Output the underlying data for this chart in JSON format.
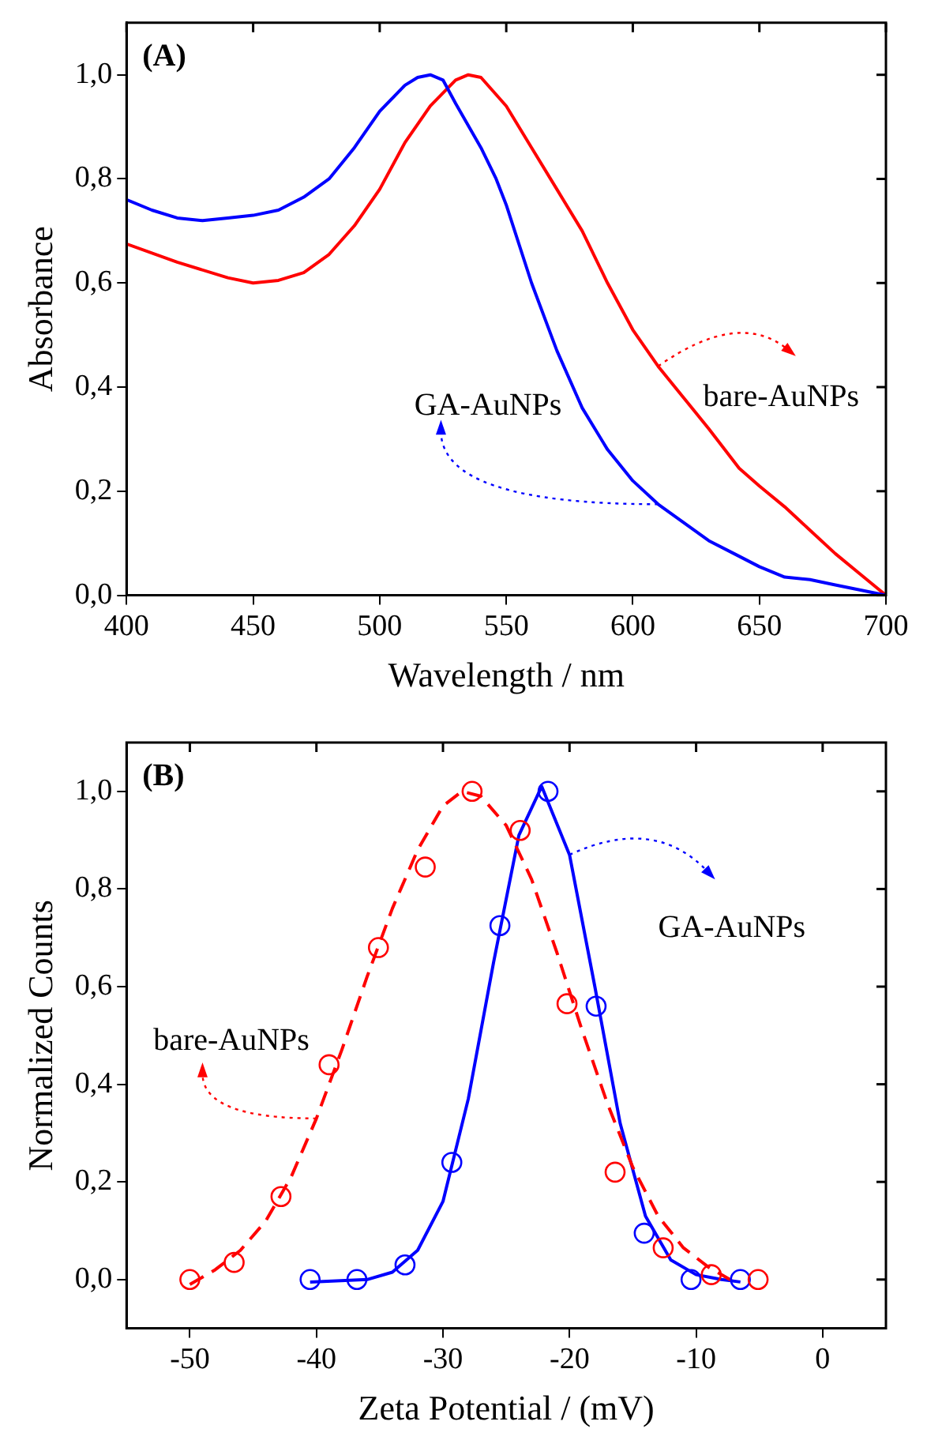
{
  "chart_data": [
    {
      "type": "line",
      "title": "(A)",
      "xlabel": "Wavelength / nm",
      "ylabel": "Absorbance",
      "xlim": [
        400,
        700
      ],
      "xticks": [
        400,
        450,
        500,
        550,
        600,
        650,
        700
      ],
      "ylim": [
        0,
        1.1
      ],
      "yticks": [
        {
          "value": 0,
          "label": "0,0"
        },
        {
          "value": 0.2,
          "label": "0,2"
        },
        {
          "value": 0.4,
          "label": "0,4"
        },
        {
          "value": 0.6,
          "label": "0,6"
        },
        {
          "value": 0.8,
          "label": "0,8"
        },
        {
          "value": 1,
          "label": "1,0"
        }
      ],
      "grid": false,
      "marker": "none",
      "line_style": "solid",
      "series": [
        {
          "name": "GA-AuNPs",
          "color": "#0000ff",
          "x": [
            400,
            410,
            420,
            430,
            440,
            450,
            460,
            470,
            480,
            490,
            500,
            510,
            515,
            520,
            525,
            530,
            540,
            546,
            550,
            560,
            570,
            580,
            590,
            600,
            610,
            620,
            630,
            640,
            650,
            660,
            670,
            680,
            690,
            700
          ],
          "values": [
            0.76,
            0.74,
            0.725,
            0.72,
            0.725,
            0.73,
            0.74,
            0.765,
            0.8,
            0.86,
            0.93,
            0.98,
            0.995,
            1.0,
            0.99,
            0.945,
            0.86,
            0.8,
            0.75,
            0.6,
            0.47,
            0.36,
            0.28,
            0.22,
            0.175,
            0.14,
            0.105,
            0.08,
            0.055,
            0.035,
            0.03,
            0.02,
            0.01,
            0.0
          ]
        },
        {
          "name": "bare-AuNPs",
          "color": "#ff0000",
          "x": [
            400,
            420,
            440,
            450,
            460,
            470,
            480,
            490,
            500,
            510,
            520,
            530,
            535,
            540,
            550,
            560,
            570,
            580,
            590,
            600,
            610,
            620,
            630,
            642,
            650,
            660,
            670,
            680,
            690,
            700
          ],
          "values": [
            0.675,
            0.64,
            0.61,
            0.6,
            0.605,
            0.62,
            0.655,
            0.71,
            0.78,
            0.87,
            0.94,
            0.99,
            1.0,
            0.995,
            0.94,
            0.86,
            0.78,
            0.7,
            0.6,
            0.51,
            0.44,
            0.38,
            0.32,
            0.244,
            0.21,
            0.17,
            0.125,
            0.08,
            0.04,
            0.0
          ]
        }
      ]
    },
    {
      "type": "line",
      "title": "(B)",
      "xlabel": "Zeta Potential / (mV)",
      "ylabel": "Normalized Counts",
      "xlim": [
        -55,
        5
      ],
      "xticks": [
        -50,
        -40,
        -30,
        -20,
        -10,
        0
      ],
      "ylim": [
        -0.1,
        1.1
      ],
      "yticks": [
        {
          "value": 0,
          "label": "0,0"
        },
        {
          "value": 0.2,
          "label": "0,2"
        },
        {
          "value": 0.4,
          "label": "0,4"
        },
        {
          "value": 0.6,
          "label": "0,6"
        },
        {
          "value": 0.8,
          "label": "0,8"
        },
        {
          "value": 1,
          "label": "1,0"
        }
      ],
      "grid": false,
      "series": [
        {
          "type": "scatter",
          "marker": "circle",
          "color": "#ff0000",
          "x": [
            -50,
            -46.5,
            -42.8,
            -39,
            -35.1,
            -31.4,
            -27.7,
            -23.9,
            -20.2,
            -16.4,
            -12.6,
            -8.8,
            -5.1
          ],
          "values": [
            0,
            0.035,
            0.17,
            0.44,
            0.68,
            0.845,
            1.0,
            0.92,
            0.565,
            0.22,
            0.065,
            0.01,
            0
          ]
        },
        {
          "type": "line",
          "name": "bare-AuNPs",
          "marker": "none",
          "line_style": "dashed",
          "color": "#ff0000",
          "x": [
            -50,
            -48,
            -46,
            -44,
            -42,
            -40,
            -38,
            -36,
            -34,
            -32,
            -30,
            -28.5,
            -27,
            -25,
            -23,
            -21,
            -19,
            -17,
            -15,
            -13,
            -11,
            -9,
            -7
          ],
          "values": [
            -0.01,
            0.02,
            0.06,
            0.12,
            0.21,
            0.33,
            0.47,
            0.62,
            0.76,
            0.88,
            0.97,
            1.0,
            0.99,
            0.93,
            0.82,
            0.67,
            0.51,
            0.36,
            0.23,
            0.13,
            0.065,
            0.025,
            -0.005
          ]
        },
        {
          "type": "scatter",
          "marker": "circle",
          "color": "#0000ff",
          "x": [
            -40.5,
            -36.8,
            -33,
            -29.3,
            -25.5,
            -21.7,
            -17.9,
            -14.1,
            -10.4,
            -6.5
          ],
          "values": [
            0,
            0,
            0.03,
            0.24,
            0.725,
            1.0,
            0.56,
            0.095,
            0,
            0
          ]
        },
        {
          "type": "line",
          "name": "GA-AuNPs",
          "marker": "none",
          "line_style": "solid",
          "color": "#0000ff",
          "x": [
            -40.5,
            -36,
            -34,
            -32,
            -30,
            -28,
            -26,
            -24,
            -22.2,
            -20,
            -18,
            -16,
            -14,
            -12,
            -10,
            -8,
            -6.5
          ],
          "values": [
            -0.005,
            0,
            0.015,
            0.06,
            0.16,
            0.37,
            0.65,
            0.91,
            1.01,
            0.87,
            0.6,
            0.32,
            0.13,
            0.04,
            0.01,
            0,
            -0.005
          ]
        }
      ]
    }
  ]
}
